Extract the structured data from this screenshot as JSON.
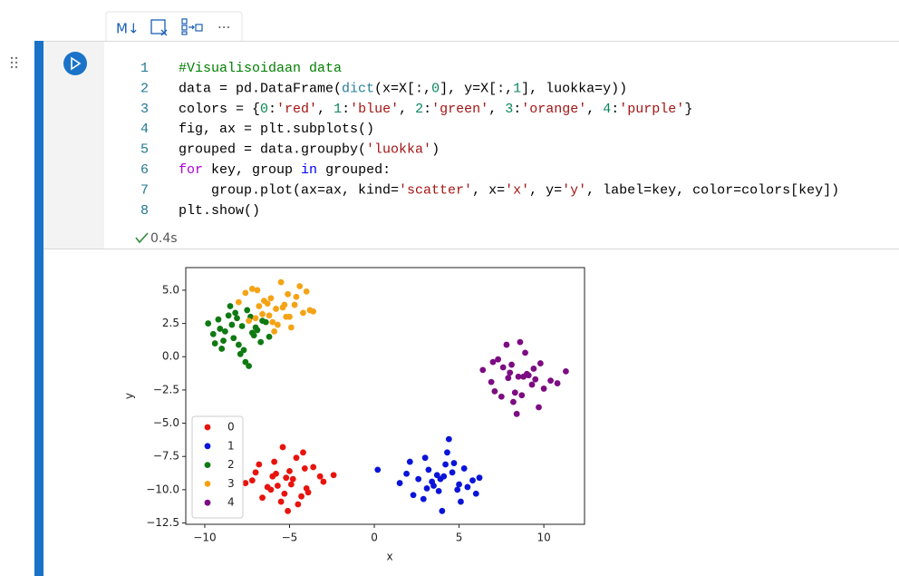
{
  "toolbar": {
    "markdown_label": "M↓",
    "more_label": "···"
  },
  "code": {
    "line_numbers": [
      1,
      2,
      3,
      4,
      5,
      6,
      7,
      8
    ],
    "lines": [
      [
        {
          "text": "#Visualisoidaan data",
          "color": "#008000"
        }
      ],
      [
        {
          "text": "data = pd.DataFrame(",
          "color": "#000000"
        },
        {
          "text": "dict",
          "color": "#267f99"
        },
        {
          "text": "(x=X[:,",
          "color": "#000000"
        },
        {
          "text": "0",
          "color": "#098658"
        },
        {
          "text": "], y=X[:,",
          "color": "#000000"
        },
        {
          "text": "1",
          "color": "#098658"
        },
        {
          "text": "], luokka=y))",
          "color": "#000000"
        }
      ],
      [
        {
          "text": "colors = {",
          "color": "#000000"
        },
        {
          "text": "0",
          "color": "#098658"
        },
        {
          "text": ":",
          "color": "#000000"
        },
        {
          "text": "'red'",
          "color": "#a31515"
        },
        {
          "text": ", ",
          "color": "#000000"
        },
        {
          "text": "1",
          "color": "#098658"
        },
        {
          "text": ":",
          "color": "#000000"
        },
        {
          "text": "'blue'",
          "color": "#a31515"
        },
        {
          "text": ", ",
          "color": "#000000"
        },
        {
          "text": "2",
          "color": "#098658"
        },
        {
          "text": ":",
          "color": "#000000"
        },
        {
          "text": "'green'",
          "color": "#a31515"
        },
        {
          "text": ", ",
          "color": "#000000"
        },
        {
          "text": "3",
          "color": "#098658"
        },
        {
          "text": ":",
          "color": "#000000"
        },
        {
          "text": "'orange'",
          "color": "#a31515"
        },
        {
          "text": ", ",
          "color": "#000000"
        },
        {
          "text": "4",
          "color": "#098658"
        },
        {
          "text": ":",
          "color": "#000000"
        },
        {
          "text": "'purple'",
          "color": "#a31515"
        },
        {
          "text": "}",
          "color": "#000000"
        }
      ],
      [
        {
          "text": "fig, ax = plt.subplots()",
          "color": "#000000"
        }
      ],
      [
        {
          "text": "grouped = data.groupby(",
          "color": "#000000"
        },
        {
          "text": "'luokka'",
          "color": "#a31515"
        },
        {
          "text": ")",
          "color": "#000000"
        }
      ],
      [
        {
          "text": "for",
          "color": "#af00db"
        },
        {
          "text": " key, group ",
          "color": "#000000"
        },
        {
          "text": "in",
          "color": "#0000ff"
        },
        {
          "text": " grouped:",
          "color": "#000000"
        }
      ],
      [
        {
          "text": "    group.plot(ax=ax, kind=",
          "color": "#000000"
        },
        {
          "text": "'scatter'",
          "color": "#a31515"
        },
        {
          "text": ", x=",
          "color": "#000000"
        },
        {
          "text": "'x'",
          "color": "#a31515"
        },
        {
          "text": ", y=",
          "color": "#000000"
        },
        {
          "text": "'y'",
          "color": "#a31515"
        },
        {
          "text": ", label=key, color=colors[key])",
          "color": "#000000"
        }
      ],
      [
        {
          "text": "plt.show()",
          "color": "#000000"
        }
      ]
    ],
    "status": "0.4s"
  },
  "chart_data": {
    "type": "scatter",
    "xlabel": "x",
    "ylabel": "y",
    "xlim": [
      -11.12,
      12.4
    ],
    "ylim": [
      -12.6,
      6.7
    ],
    "xticks": [
      {
        "value": -10,
        "label": "−10"
      },
      {
        "value": -5,
        "label": "−5"
      },
      0,
      5,
      10
    ],
    "yticks": [
      {
        "value": 5,
        "label": "5.0"
      },
      {
        "value": 2.5,
        "label": "2.5"
      },
      {
        "value": 0,
        "label": "0.0"
      },
      {
        "value": -2.5,
        "label": "−2.5"
      },
      {
        "value": -5,
        "label": "−5.0"
      },
      {
        "value": -7.5,
        "label": "−7.5"
      },
      {
        "value": -10,
        "label": "−10.0"
      },
      {
        "value": -12.5,
        "label": "−12.5"
      }
    ],
    "legend": "lower left",
    "series": [
      {
        "name": "0",
        "color": "#e8130c",
        "x": [
          -5.2,
          -4.1,
          -6.3,
          -5.8,
          -3.9,
          -4.6,
          -7.2,
          -5.5,
          -3.2,
          -6.8,
          -4.9,
          -5.1,
          -2.4,
          -7.6,
          -4.3,
          -5.9,
          -6.1,
          -3.6,
          -4.8,
          -5.4,
          -6.6,
          -4.0,
          -5.0,
          -3.0,
          -7.0,
          -5.7,
          -4.5,
          -6.0,
          -4.2,
          -5.3
        ],
        "values": [
          -9.1,
          -8.4,
          -9.8,
          -8.8,
          -10.2,
          -7.6,
          -9.3,
          -10.9,
          -9.0,
          -8.1,
          -9.6,
          -11.6,
          -8.9,
          -9.5,
          -10.5,
          -7.9,
          -10.0,
          -8.3,
          -9.2,
          -6.8,
          -10.6,
          -9.9,
          -8.6,
          -9.4,
          -8.7,
          -9.7,
          -11.1,
          -9.0,
          -7.2,
          -10.3
        ]
      },
      {
        "name": "1",
        "color": "#0a14d8",
        "x": [
          4.1,
          3.2,
          5.0,
          2.6,
          4.7,
          3.8,
          5.8,
          1.9,
          4.4,
          3.5,
          5.3,
          2.3,
          4.0,
          6.2,
          3.0,
          4.9,
          0.2,
          3.7,
          5.5,
          2.9,
          4.3,
          1.5,
          6.0,
          3.4,
          4.6,
          2.1,
          5.1,
          3.9,
          4.2,
          3.1
        ],
        "values": [
          -9.0,
          -8.5,
          -9.6,
          -9.2,
          -8.0,
          -10.1,
          -9.3,
          -8.8,
          -6.2,
          -9.7,
          -8.4,
          -10.4,
          -11.6,
          -9.1,
          -7.6,
          -10.0,
          -8.5,
          -8.9,
          -9.8,
          -10.7,
          -7.2,
          -9.5,
          -10.3,
          -9.4,
          -8.7,
          -7.9,
          -10.9,
          -9.2,
          -8.1,
          -9.9
        ]
      },
      {
        "name": "2",
        "color": "#0f7a12",
        "x": [
          -7.8,
          -8.6,
          -7.1,
          -9.2,
          -8.0,
          -6.9,
          -7.5,
          -9.8,
          -8.3,
          -6.4,
          -7.9,
          -8.8,
          -7.3,
          -9.0,
          -6.7,
          -8.1,
          -7.6,
          -9.5,
          -8.5,
          -7.0,
          -8.9,
          -7.4,
          -6.2,
          -8.4,
          -9.4,
          -7.7,
          -8.2,
          -6.6,
          -9.1,
          -7.2
        ],
        "values": [
          2.3,
          3.1,
          1.6,
          2.8,
          0.9,
          2.0,
          3.5,
          2.5,
          1.4,
          2.6,
          0.2,
          1.9,
          3.0,
          0.6,
          1.1,
          2.9,
          -0.4,
          1.7,
          3.8,
          2.2,
          1.2,
          -0.7,
          1.5,
          2.4,
          1.0,
          0.5,
          3.3,
          2.7,
          2.1,
          1.8
        ]
      },
      {
        "name": "3",
        "color": "#f5a316",
        "x": [
          -5.8,
          -6.5,
          -5.0,
          -7.2,
          -4.6,
          -6.0,
          -5.3,
          -7.6,
          -4.2,
          -6.8,
          -5.5,
          -4.9,
          -6.3,
          -3.8,
          -7.0,
          -5.1,
          -6.6,
          -4.4,
          -5.7,
          -8.0,
          -4.0,
          -6.2,
          -5.4,
          -7.4,
          -3.6,
          -6.9,
          -4.7,
          -5.9,
          -6.1,
          -5.2
        ],
        "values": [
          3.6,
          4.2,
          3.0,
          5.1,
          4.5,
          2.6,
          3.9,
          4.8,
          3.3,
          3.8,
          5.6,
          2.2,
          4.0,
          3.5,
          2.9,
          4.7,
          3.2,
          5.3,
          2.4,
          4.1,
          4.9,
          3.1,
          3.7,
          2.7,
          3.4,
          5.0,
          3.9,
          1.9,
          4.4,
          3.0
        ]
      },
      {
        "name": "4",
        "color": "#7d0c82",
        "x": [
          8.5,
          7.6,
          9.3,
          8.0,
          9.8,
          7.1,
          8.9,
          10.4,
          6.4,
          8.2,
          9.1,
          7.8,
          11.3,
          8.7,
          7.3,
          9.5,
          8.4,
          6.9,
          10.0,
          8.1,
          9.0,
          7.5,
          8.6,
          10.8,
          7.9,
          9.4,
          8.3,
          8.8,
          7.0,
          9.7
        ],
        "values": [
          -1.5,
          -0.8,
          -2.1,
          -1.2,
          -0.5,
          -2.6,
          0.3,
          -1.8,
          -1.0,
          -3.4,
          -1.4,
          0.9,
          -1.1,
          -2.9,
          -0.2,
          -1.7,
          -4.3,
          -1.9,
          -2.4,
          -0.6,
          -1.3,
          -3.0,
          1.1,
          -2.0,
          -1.6,
          -0.9,
          -2.7,
          -1.5,
          -0.4,
          -3.8
        ]
      }
    ]
  }
}
